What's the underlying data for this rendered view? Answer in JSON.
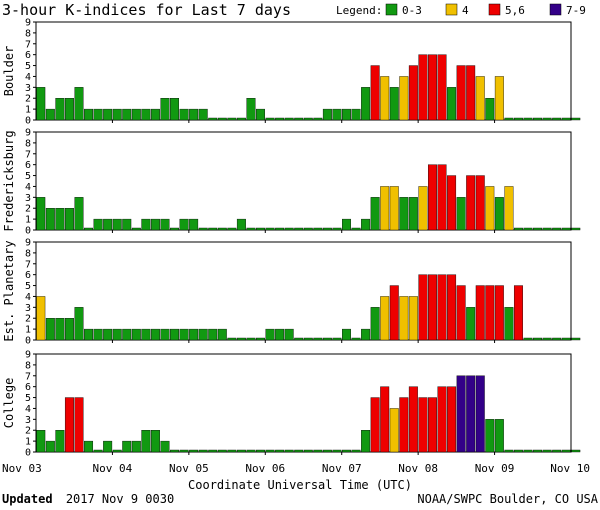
{
  "title": "3-hour K-indices for Last 7 days",
  "legend": {
    "label": "Legend:",
    "items": [
      {
        "label": "0-3",
        "color": "#119911"
      },
      {
        "label": "4",
        "color": "#f0c000"
      },
      {
        "label": "5,6",
        "color": "#ee0000"
      },
      {
        "label": "7-9",
        "color": "#330088"
      }
    ]
  },
  "xlabel": "Coordinate Universal Time (UTC)",
  "updated": {
    "label": "Updated",
    "value": "2017 Nov  9 0030"
  },
  "source": "NOAA/SWPC Boulder, CO USA",
  "chart_data": {
    "type": "bar",
    "x_tick_labels": [
      "Nov 03",
      "Nov 04",
      "Nov 05",
      "Nov 06",
      "Nov 07",
      "Nov 08",
      "Nov 09",
      "Nov 10"
    ],
    "y_tick_labels": [
      "0",
      "1",
      "2",
      "3",
      "4",
      "5",
      "6",
      "7",
      "8",
      "9"
    ],
    "ylim": [
      0,
      9
    ],
    "bins_per_day": 8,
    "panels": [
      {
        "name": "Boulder",
        "values": [
          3,
          1,
          2,
          2,
          3,
          1,
          1,
          1,
          1,
          1,
          1,
          1,
          1,
          2,
          2,
          1,
          1,
          1,
          0,
          0,
          0,
          0,
          2,
          1,
          0,
          0,
          0,
          0,
          0,
          0,
          1,
          1,
          1,
          1,
          3,
          5,
          4,
          3,
          4,
          5,
          6,
          6,
          6,
          3,
          5,
          5,
          4,
          2,
          4,
          0,
          0,
          0,
          0,
          0,
          0,
          0,
          0
        ]
      },
      {
        "name": "Fredericksburg",
        "values": [
          3,
          2,
          2,
          2,
          3,
          0,
          1,
          1,
          1,
          1,
          0,
          1,
          1,
          1,
          0,
          1,
          1,
          0,
          0,
          0,
          0,
          1,
          0,
          0,
          0,
          0,
          0,
          0,
          0,
          0,
          0,
          0,
          1,
          0,
          1,
          3,
          4,
          4,
          3,
          3,
          4,
          6,
          6,
          5,
          3,
          5,
          5,
          4,
          3,
          4,
          0,
          0,
          0,
          0,
          0,
          0,
          0
        ]
      },
      {
        "name": "Est. Planetary",
        "values": [
          4,
          2,
          2,
          2,
          3,
          1,
          1,
          1,
          1,
          1,
          1,
          1,
          1,
          1,
          1,
          1,
          1,
          1,
          1,
          1,
          0,
          0,
          0,
          0,
          1,
          1,
          1,
          0,
          0,
          0,
          0,
          0,
          1,
          0,
          1,
          3,
          4,
          5,
          4,
          4,
          6,
          6,
          6,
          6,
          5,
          3,
          5,
          5,
          5,
          3,
          5,
          0,
          0,
          0,
          0,
          0,
          0
        ]
      },
      {
        "name": "College",
        "values": [
          2,
          1,
          2,
          5,
          5,
          1,
          0,
          1,
          0,
          1,
          1,
          2,
          2,
          1,
          0,
          0,
          0,
          0,
          0,
          0,
          0,
          0,
          0,
          0,
          0,
          0,
          0,
          0,
          0,
          0,
          0,
          0,
          0,
          0,
          2,
          5,
          6,
          4,
          5,
          6,
          5,
          5,
          6,
          6,
          7,
          7,
          7,
          3,
          3,
          0,
          0,
          0,
          0,
          0,
          0,
          0,
          0
        ]
      }
    ]
  }
}
